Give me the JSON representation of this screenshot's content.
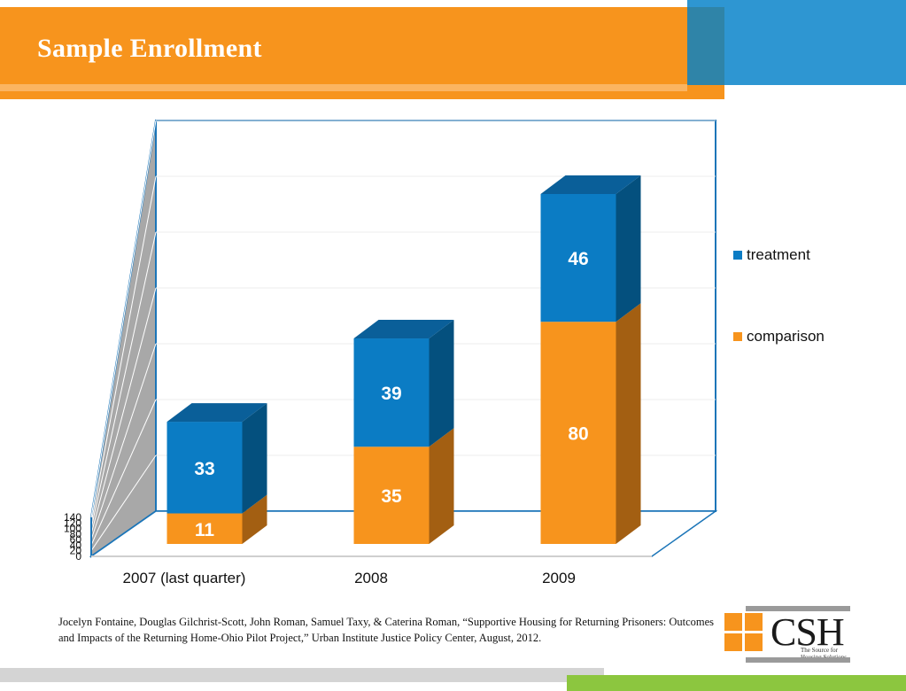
{
  "slide": {
    "title": "Sample Enrollment",
    "citation": "Jocelyn Fontaine, Douglas Gilchrist-Scott, John Roman, Samuel Taxy, & Caterina Roman, “Supportive Housing for Returning Prisoners: Outcomes and Impacts of the Returning Home-Ohio Pilot Project,” Urban Institute Justice Policy Center, August, 2012.",
    "logo": {
      "name": "CSH",
      "tagline_1": "The Source for",
      "tagline_2": "Housing Solutions"
    },
    "colors": {
      "orange": "#f7941d",
      "blue": "#2e96d2",
      "green": "#8cc63f"
    }
  },
  "legend": {
    "items": [
      {
        "label": "treatment",
        "color": "#0b7cc4"
      },
      {
        "label": "comparison",
        "color": "#f7941d"
      }
    ]
  },
  "chart_data": {
    "type": "bar",
    "stacked": true,
    "three_d": true,
    "categories": [
      "2007 (last quarter)",
      "2008",
      "2009"
    ],
    "series": [
      {
        "name": "comparison",
        "values": [
          11,
          35,
          80
        ],
        "color": "#f7941d",
        "side_color": "#a35f12",
        "top_color": "#c87816"
      },
      {
        "name": "treatment",
        "values": [
          33,
          39,
          46
        ],
        "color": "#0b7cc4",
        "side_color": "#04507e",
        "top_color": "#0a5f99"
      }
    ],
    "ylim": [
      0,
      140
    ],
    "yticks": [
      0,
      20,
      40,
      60,
      80,
      100,
      120,
      140
    ],
    "legend_position": "right",
    "grid": true
  }
}
